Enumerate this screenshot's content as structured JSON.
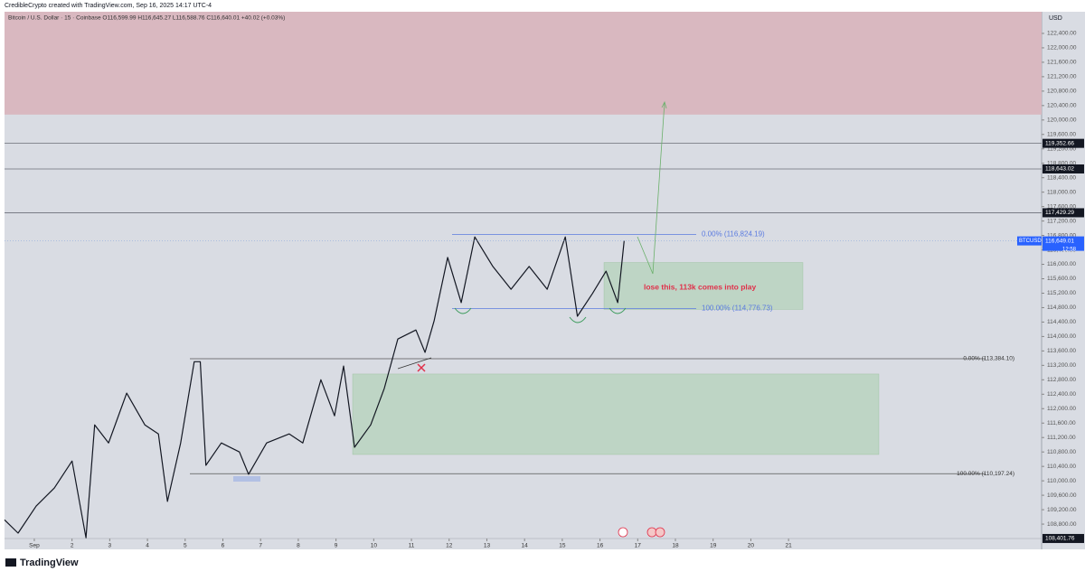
{
  "chart_data": {
    "type": "line",
    "header": "CredibleCrypto created with TradingView.com, Sep 16, 2025 14:17 UTC-4",
    "symbol_line": "Bitcoin / U.S. Dollar · 15 · Coinbase  O116,599.99 H116,645.27 L116,588.76 C116,640.01 +40.02 (+0.03%)",
    "brand": "TradingView",
    "axis_label": "USD",
    "series": [
      {
        "name": "BTCUSD",
        "color": "#131722",
        "x": [
          0.21,
          0.57,
          1.05,
          1.53,
          2.0,
          2.37,
          2.6,
          2.97,
          3.45,
          3.93,
          4.29,
          4.53,
          4.88,
          5.24,
          5.4,
          5.55,
          5.96,
          6.44,
          6.68,
          7.16,
          7.76,
          8.12,
          8.6,
          8.96,
          9.2,
          9.49,
          9.92,
          10.28,
          10.64,
          11.12,
          11.36,
          11.6,
          11.96,
          12.32,
          12.68,
          13.16,
          13.64,
          14.12,
          14.6,
          15.08,
          15.4,
          15.8,
          16.16,
          16.47,
          16.64
        ],
        "values": [
          108920,
          108550,
          109300,
          109800,
          110550,
          108420,
          111550,
          111050,
          112430,
          111550,
          111300,
          109430,
          111050,
          113300,
          113300,
          110430,
          111050,
          110800,
          110180,
          111050,
          111300,
          111050,
          112800,
          111800,
          113180,
          110930,
          111550,
          112560,
          113930,
          114180,
          113560,
          114430,
          116190,
          114940,
          116760,
          115940,
          115310,
          115940,
          115310,
          116760,
          114560,
          115190,
          115810,
          114940,
          116649
        ]
      }
    ],
    "last_price": {
      "value": 116649.01,
      "label": "116,649.01",
      "countdown": "12:58"
    },
    "xlim": [
      0.21,
      27.71
    ],
    "xticks": [
      {
        "value": 1,
        "label": "Sep"
      },
      2,
      3,
      4,
      5,
      6,
      7,
      8,
      9,
      10,
      11,
      12,
      13,
      14,
      15,
      16,
      17,
      18,
      19,
      20,
      21
    ],
    "ylim": [
      108100,
      123000
    ],
    "yticks": [
      {
        "value": 108800,
        "label": "108,800.00"
      },
      {
        "value": 109200,
        "label": "109,200.00"
      },
      {
        "value": 109600,
        "label": "109,600.00"
      },
      {
        "value": 110000,
        "label": "110,000.00"
      },
      {
        "value": 110400,
        "label": "110,400.00"
      },
      {
        "value": 110800,
        "label": "110,800.00"
      },
      {
        "value": 111200,
        "label": "111,200.00"
      },
      {
        "value": 111600,
        "label": "111,600.00"
      },
      {
        "value": 112000,
        "label": "112,000.00"
      },
      {
        "value": 112400,
        "label": "112,400.00"
      },
      {
        "value": 112800,
        "label": "112,800.00"
      },
      {
        "value": 113200,
        "label": "113,200.00"
      },
      {
        "value": 113600,
        "label": "113,600.00"
      },
      {
        "value": 114000,
        "label": "114,000.00"
      },
      {
        "value": 114400,
        "label": "114,400.00"
      },
      {
        "value": 114800,
        "label": "114,800.00"
      },
      {
        "value": 115200,
        "label": "115,200.00"
      },
      {
        "value": 115600,
        "label": "115,600.00"
      },
      {
        "value": 116000,
        "label": "116,000.00"
      },
      {
        "value": 116400,
        "label": "116,400.00"
      },
      {
        "value": 116800,
        "label": "116,800.00"
      },
      {
        "value": 117200,
        "label": "117,200.00"
      },
      {
        "value": 117600,
        "label": "117,600.00"
      },
      {
        "value": 118000,
        "label": "118,000.00"
      },
      {
        "value": 118400,
        "label": "118,400.00"
      },
      {
        "value": 118800,
        "label": "118,800.00"
      },
      {
        "value": 119200,
        "label": "119,200.00"
      },
      {
        "value": 119600,
        "label": "119,600.00"
      },
      {
        "value": 120000,
        "label": "120,000.00"
      },
      {
        "value": 120400,
        "label": "120,400.00"
      },
      {
        "value": 120800,
        "label": "120,800.00"
      },
      {
        "value": 121200,
        "label": "121,200.00"
      },
      {
        "value": 121600,
        "label": "121,600.00"
      },
      {
        "value": 122000,
        "label": "122,000.00"
      },
      {
        "value": 122400,
        "label": "122,400.00"
      }
    ],
    "levels": [
      {
        "value": 119352.66,
        "label": "119,352.66"
      },
      {
        "value": 118643.02,
        "label": "118,643.02"
      },
      {
        "value": 117429.29,
        "label": "117,429.29"
      },
      {
        "value": 108401.76,
        "label": "108,401.76"
      }
    ],
    "resistance_zone": [
      120150,
      123000
    ],
    "fib_upper": [
      {
        "value": 116824.19,
        "label": "0.00% (116,824.19)"
      },
      {
        "value": 114776.73,
        "label": "100.00% (114,776.73)"
      }
    ],
    "fib_lower": [
      {
        "value": 113384.1,
        "label": "0.00% (113,384.10)"
      },
      {
        "value": 110197.24,
        "label": "100.00% (110,197.24)"
      }
    ],
    "boxes": [
      [
        114750,
        116050
      ],
      [
        110730,
        112960
      ]
    ],
    "annotation": "lose this, 113k comes into play"
  }
}
